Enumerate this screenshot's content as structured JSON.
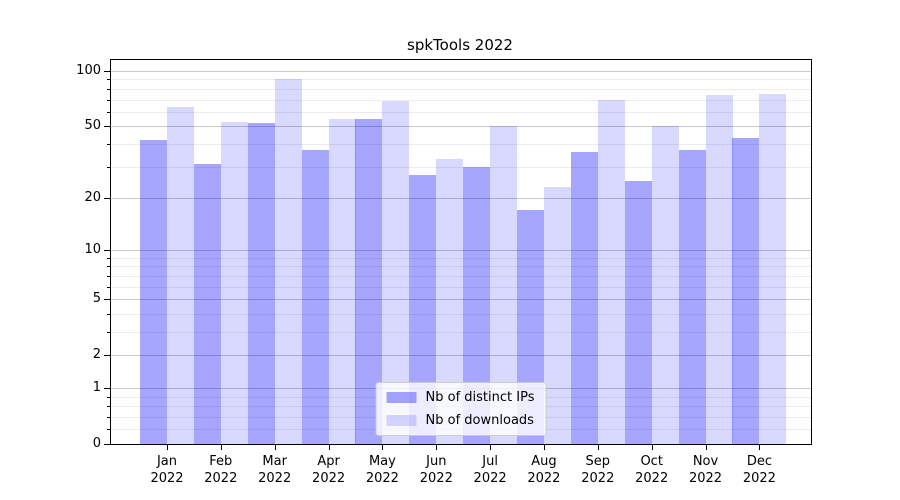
{
  "chart_data": {
    "type": "bar",
    "title": "spkTools 2022",
    "categories": [
      "Jan",
      "Feb",
      "Mar",
      "Apr",
      "May",
      "Jun",
      "Jul",
      "Aug",
      "Sep",
      "Oct",
      "Nov",
      "Dec"
    ],
    "x_tick_year": "2022",
    "series": [
      {
        "name": "Nb of distinct IPs",
        "color": "rgba(0,0,255,0.35)",
        "values": [
          42,
          31,
          52,
          37,
          55,
          27,
          30,
          17,
          36,
          25,
          37,
          43
        ]
      },
      {
        "name": "Nb of downloads",
        "color": "rgba(0,0,255,0.15)",
        "values": [
          64,
          53,
          90,
          55,
          69,
          33,
          50,
          23,
          70,
          50,
          74,
          75
        ]
      }
    ],
    "yscale": "log1p",
    "ylim": [
      0,
      115
    ],
    "y_major_ticks": [
      0,
      1,
      2,
      5,
      10,
      20,
      50,
      100
    ],
    "y_minor_ticks": [
      0.2,
      0.4,
      0.6,
      0.8,
      3,
      4,
      6,
      7,
      8,
      9,
      30,
      40,
      60,
      70,
      80,
      90
    ],
    "grid": true,
    "legend_position": "lower center"
  },
  "styles": {
    "background": "#ffffff",
    "spine_color": "#000000",
    "text_color": "#000000",
    "major_grid_color": "#c9c9c9",
    "minor_grid_color": "#ececec",
    "bar_color_distinct_ips": "rgba(0,0,255,0.35)",
    "bar_color_downloads": "rgba(0,0,255,0.15)",
    "legend_border_color": "#cccccc"
  }
}
